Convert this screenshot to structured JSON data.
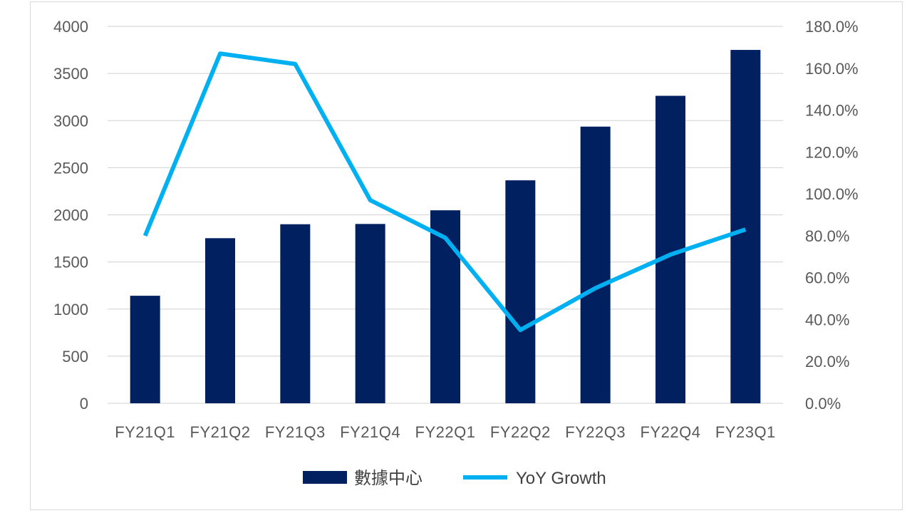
{
  "chart_data": {
    "type": "bar+line",
    "title": "",
    "categories": [
      "FY21Q1",
      "FY21Q2",
      "FY21Q3",
      "FY21Q4",
      "FY22Q1",
      "FY22Q2",
      "FY22Q3",
      "FY22Q4",
      "FY23Q1"
    ],
    "series": [
      {
        "name": "數據中心",
        "type": "bar",
        "axis": "left",
        "color": "#002060",
        "values": [
          1141,
          1752,
          1900,
          1903,
          2048,
          2366,
          2936,
          3263,
          3750
        ]
      },
      {
        "name": "YoY Growth",
        "type": "line",
        "axis": "right",
        "color": "#00B0F0",
        "values": [
          80.0,
          167.0,
          162.0,
          97.0,
          79.0,
          35.0,
          55.0,
          71.0,
          83.0
        ]
      }
    ],
    "left_axis": {
      "range": [
        0,
        4000
      ],
      "ticks": [
        "0",
        "500",
        "1000",
        "1500",
        "2000",
        "2500",
        "3000",
        "3500",
        "4000"
      ]
    },
    "right_axis": {
      "range": [
        0,
        180
      ],
      "ticks": [
        "0.0%",
        "20.0%",
        "40.0%",
        "60.0%",
        "80.0%",
        "100.0%",
        "120.0%",
        "140.0%",
        "160.0%",
        "180.0%"
      ]
    },
    "grid": true,
    "legend_position": "bottom"
  }
}
